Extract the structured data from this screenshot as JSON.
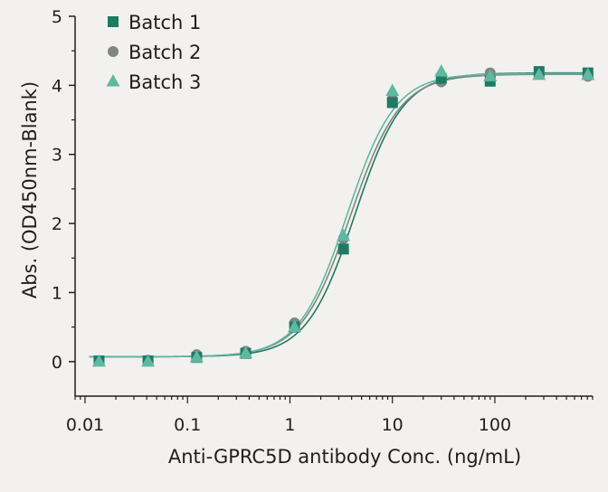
{
  "chart_data": {
    "type": "scatter",
    "title": "",
    "xlabel": "Anti-GPRC5D antibody Conc. (ng/mL)",
    "ylabel": "Abs. (OD450nm-Blank)",
    "xscale": "log",
    "xlim": [
      0.008,
      900
    ],
    "ylim": [
      -0.5,
      5
    ],
    "x_tick_labels": [
      "0.01",
      "0.1",
      "1",
      "10",
      "100"
    ],
    "x_tick_values": [
      0.01,
      0.1,
      1,
      10,
      100
    ],
    "y_tick_labels": [
      "0",
      "1",
      "2",
      "3",
      "4",
      "5"
    ],
    "y_tick_values": [
      0,
      1,
      2,
      3,
      4,
      5
    ],
    "legend_position": "top-left",
    "series": [
      {
        "name": "Batch 1",
        "marker": "square",
        "color": "#1f7a63",
        "x": [
          0.0137,
          0.0412,
          0.123,
          0.37,
          1.11,
          3.33,
          10,
          30,
          90,
          270,
          810
        ],
        "y": [
          0.01,
          0.01,
          0.06,
          0.12,
          0.5,
          1.63,
          3.75,
          4.1,
          4.06,
          4.2,
          4.18
        ],
        "fit": {
          "bottom": 0.07,
          "top": 4.18,
          "ec50": 4.3,
          "hill": 1.85
        }
      },
      {
        "name": "Batch 2",
        "marker": "circle",
        "color": "#808683",
        "x": [
          0.0137,
          0.0412,
          0.123,
          0.37,
          1.11,
          3.33,
          10,
          30,
          90,
          270,
          810
        ],
        "y": [
          0.01,
          0.02,
          0.1,
          0.15,
          0.56,
          1.78,
          3.8,
          4.05,
          4.18,
          4.17,
          4.13
        ],
        "fit": {
          "bottom": 0.07,
          "top": 4.16,
          "ec50": 3.9,
          "hill": 1.8
        }
      },
      {
        "name": "Batch 3",
        "marker": "triangle",
        "color": "#5fb8a0",
        "x": [
          0.0137,
          0.0412,
          0.123,
          0.37,
          1.11,
          3.33,
          10,
          30,
          90,
          270,
          810
        ],
        "y": [
          0.0,
          0.0,
          0.06,
          0.12,
          0.5,
          1.82,
          3.92,
          4.2,
          4.13,
          4.15,
          4.15
        ],
        "fit": {
          "bottom": 0.07,
          "top": 4.17,
          "ec50": 3.6,
          "hill": 1.85
        }
      }
    ]
  }
}
